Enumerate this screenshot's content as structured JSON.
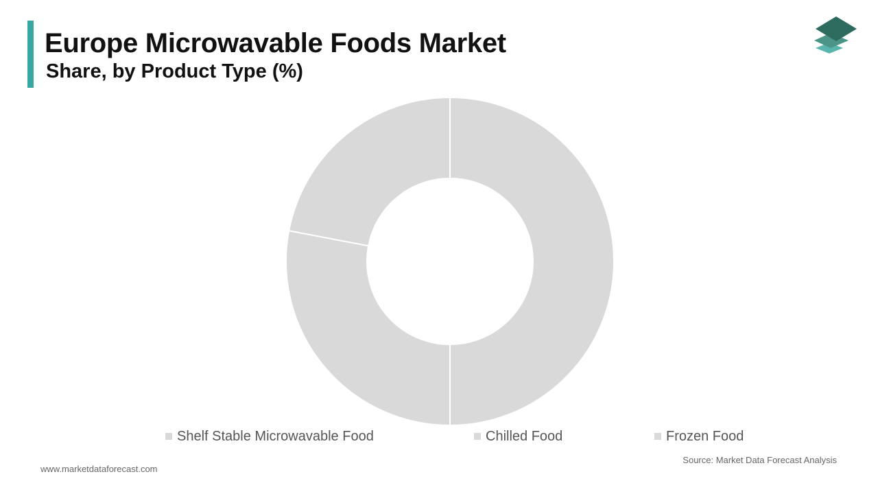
{
  "header": {
    "title": "Europe Microwavable Foods Market",
    "subtitle": "Share, by Product Type (%)"
  },
  "chart_data": {
    "type": "pie",
    "variant": "donut",
    "categories": [
      "Shelf Stable Microwavable Food",
      "Chilled Food",
      "Frozen Food"
    ],
    "values": [
      50,
      28,
      22
    ],
    "colors": [
      "#d9d9d9",
      "#d9d9d9",
      "#d9d9d9"
    ],
    "legend": "bottom"
  },
  "colors": {
    "accent": "#3aa6a2",
    "logo_top": "#2e6b5f",
    "logo_mid": "#4d9488",
    "logo_bottom": "#5ab6ad",
    "slice_separator": "#ffffff"
  },
  "footer": {
    "url": "www.marketdataforecast.com",
    "source": "Source: Market Data Forecast Analysis"
  }
}
